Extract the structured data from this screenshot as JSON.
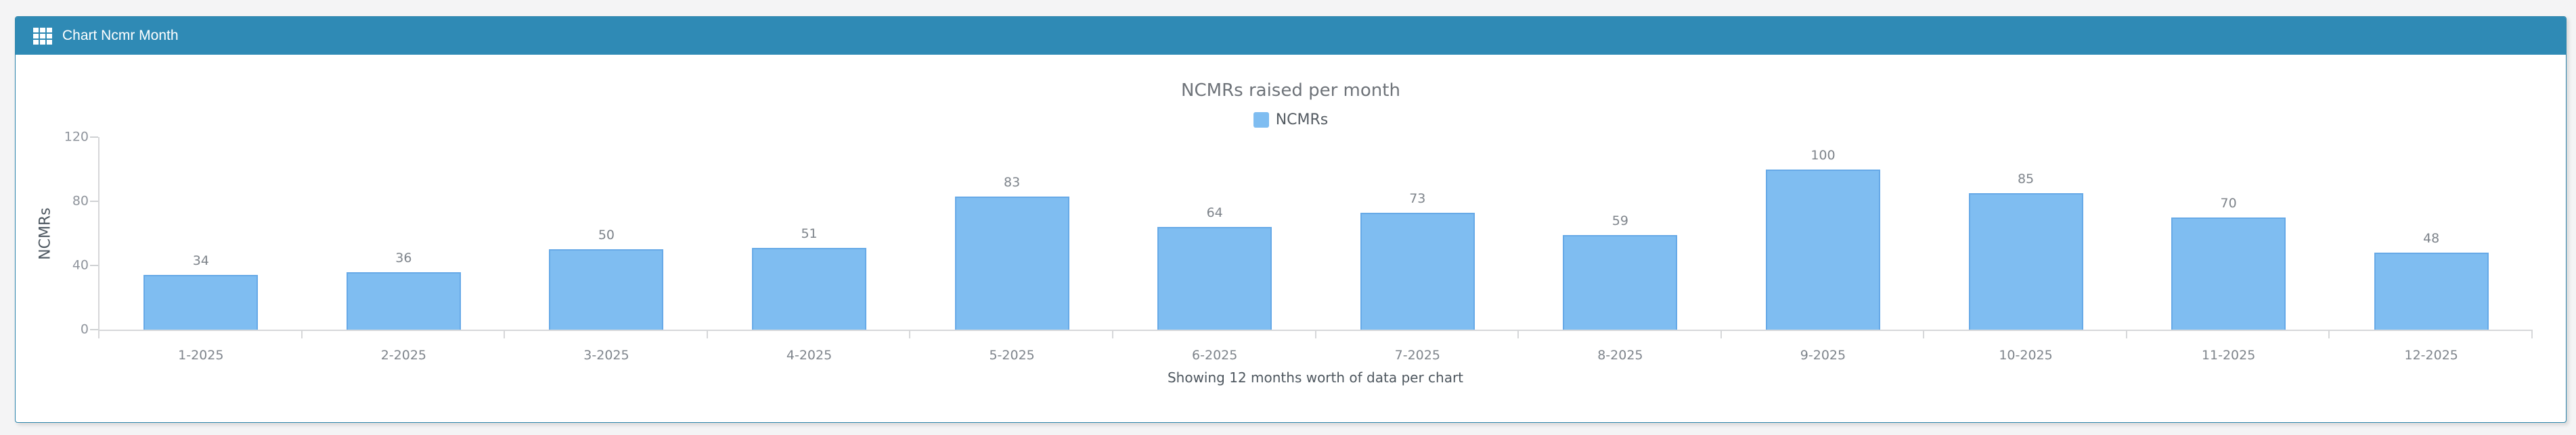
{
  "page": {
    "background": "#f4f4f5"
  },
  "panel": {
    "title": "Chart Ncmr Month",
    "icon": "grid-icon",
    "colors": {
      "header_bg": "#2f8ab5",
      "header_text": "#ffffff",
      "border": "#2b84ab"
    }
  },
  "chart_data": {
    "type": "bar",
    "title": "NCMRs raised per month",
    "series": [
      {
        "name": "NCMRs",
        "values": [
          34,
          36,
          50,
          51,
          83,
          64,
          73,
          59,
          100,
          85,
          70,
          48
        ]
      }
    ],
    "categories": [
      "1-2025",
      "2-2025",
      "3-2025",
      "4-2025",
      "5-2025",
      "6-2025",
      "7-2025",
      "8-2025",
      "9-2025",
      "10-2025",
      "11-2025",
      "12-2025"
    ],
    "xlabel": "Showing 12 months worth of data per chart",
    "ylabel": "NCMRs",
    "ylim": [
      0,
      120
    ],
    "yticks": [
      0,
      40,
      80,
      120
    ],
    "grid": false,
    "legend_position": "top-center",
    "data_labels": true,
    "bar_color": "#7fbdf1",
    "bar_border_color": "#66a9e7"
  }
}
